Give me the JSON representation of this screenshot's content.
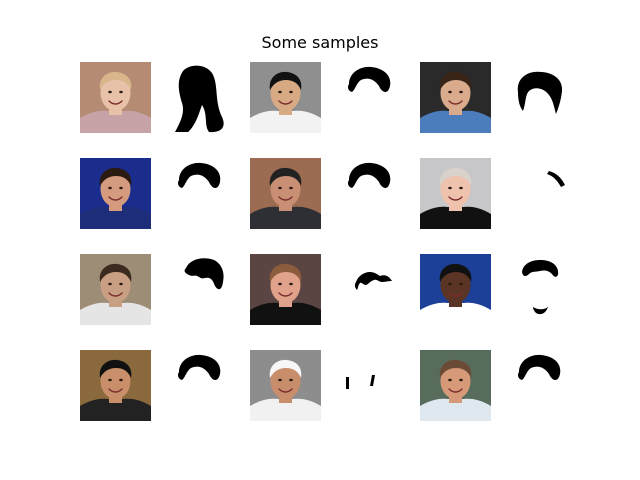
{
  "figure": {
    "title": "Some samples"
  },
  "samples": [
    {
      "face": {
        "bg": "#b58b73",
        "hair": "#d8b58a",
        "skin": "#e8c2a8",
        "shirt": "#c7a3a7"
      },
      "mask": "long-hair"
    },
    {
      "face": {
        "bg": "#8f8f8f",
        "hair": "#111111",
        "skin": "#d8aa84",
        "shirt": "#f2f2f2"
      },
      "mask": "short-hair"
    },
    {
      "face": {
        "bg": "#2a2a2a",
        "hair": "#3a2418",
        "skin": "#d9aa8c",
        "shirt": "#4b7dbd"
      },
      "mask": "medium-hair"
    },
    {
      "face": {
        "bg": "#1a2c8c",
        "hair": "#2a1a10",
        "skin": "#d49b7f",
        "shirt": "#1d2d7a"
      },
      "mask": "short-hair"
    },
    {
      "face": {
        "bg": "#9b6b52",
        "hair": "#222222",
        "skin": "#c88f75",
        "shirt": "#2d2f34"
      },
      "mask": "short-hair"
    },
    {
      "face": {
        "bg": "#c7c6c8",
        "hair": "#d8d2cb",
        "skin": "#efc2ae",
        "shirt": "#111111"
      },
      "mask": "side-patch"
    },
    {
      "face": {
        "bg": "#9d8c76",
        "hair": "#3a2a20",
        "skin": "#c99f84",
        "shirt": "#e5e5e5"
      },
      "mask": "messy-hair"
    },
    {
      "face": {
        "bg": "#5b4542",
        "hair": "#8b5d3c",
        "skin": "#e0a28a",
        "shirt": "#111111"
      },
      "mask": "top-fragment"
    },
    {
      "face": {
        "bg": "#1c3f98",
        "hair": "#111111",
        "skin": "#5a3424",
        "shirt": "#ffffff"
      },
      "mask": "hair-and-chin"
    },
    {
      "face": {
        "bg": "#8a6a3d",
        "hair": "#111111",
        "skin": "#c88f6a",
        "shirt": "#222222"
      },
      "mask": "short-hair"
    },
    {
      "face": {
        "bg": "#8d8d8d",
        "hair": "#f7f7f7",
        "skin": "#c88d6b",
        "shirt": "#f1f1f1"
      },
      "mask": "small-pieces"
    },
    {
      "face": {
        "bg": "#586c5c",
        "hair": "#6b4b35",
        "skin": "#d69a78",
        "shirt": "#dfe7ef"
      },
      "mask": "short-hair"
    }
  ]
}
